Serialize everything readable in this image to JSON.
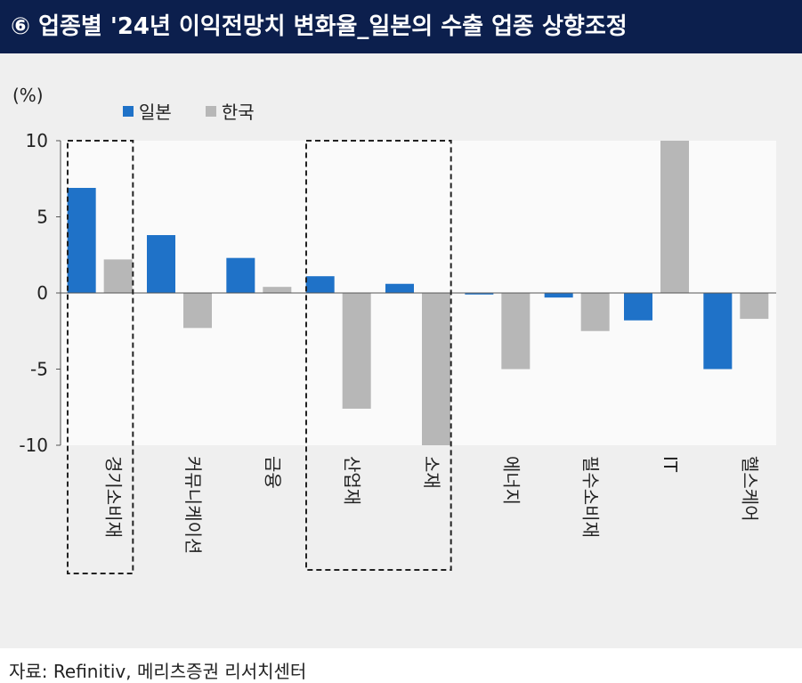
{
  "title": "⑥ 업종별 '24년 이익전망치 변화율_일본의 수출 업종 상향조정",
  "unit_label": "(%)",
  "source": "자료: Refinitiv, 메리츠증권 리서치센터",
  "colors": {
    "header_bg": "#0c1f4d",
    "japan": "#1f72c8",
    "korea": "#b7b7b7",
    "panel_bg": "#efefef",
    "plot_bg": "#fafafa"
  },
  "chart_data": {
    "type": "bar",
    "categories": [
      "경기소비재",
      "커뮤니케이션",
      "금융",
      "산업재",
      "소재",
      "에너지",
      "필수소비재",
      "IT",
      "헬스케어"
    ],
    "series": [
      {
        "name": "일본",
        "values": [
          6.9,
          3.8,
          2.3,
          1.1,
          0.6,
          -0.1,
          -0.3,
          -1.8,
          -5.0
        ]
      },
      {
        "name": "한국",
        "values": [
          2.2,
          -2.3,
          0.4,
          -7.6,
          -10.0,
          -5.0,
          -2.5,
          10.0,
          -1.7
        ]
      }
    ],
    "ylim": [
      -10,
      10
    ],
    "yticks": [
      10,
      5,
      0,
      -5,
      -10
    ],
    "legend_position": "top-left",
    "highlight_groups": [
      [
        "경기소비재"
      ],
      [
        "산업재",
        "소재"
      ]
    ]
  }
}
